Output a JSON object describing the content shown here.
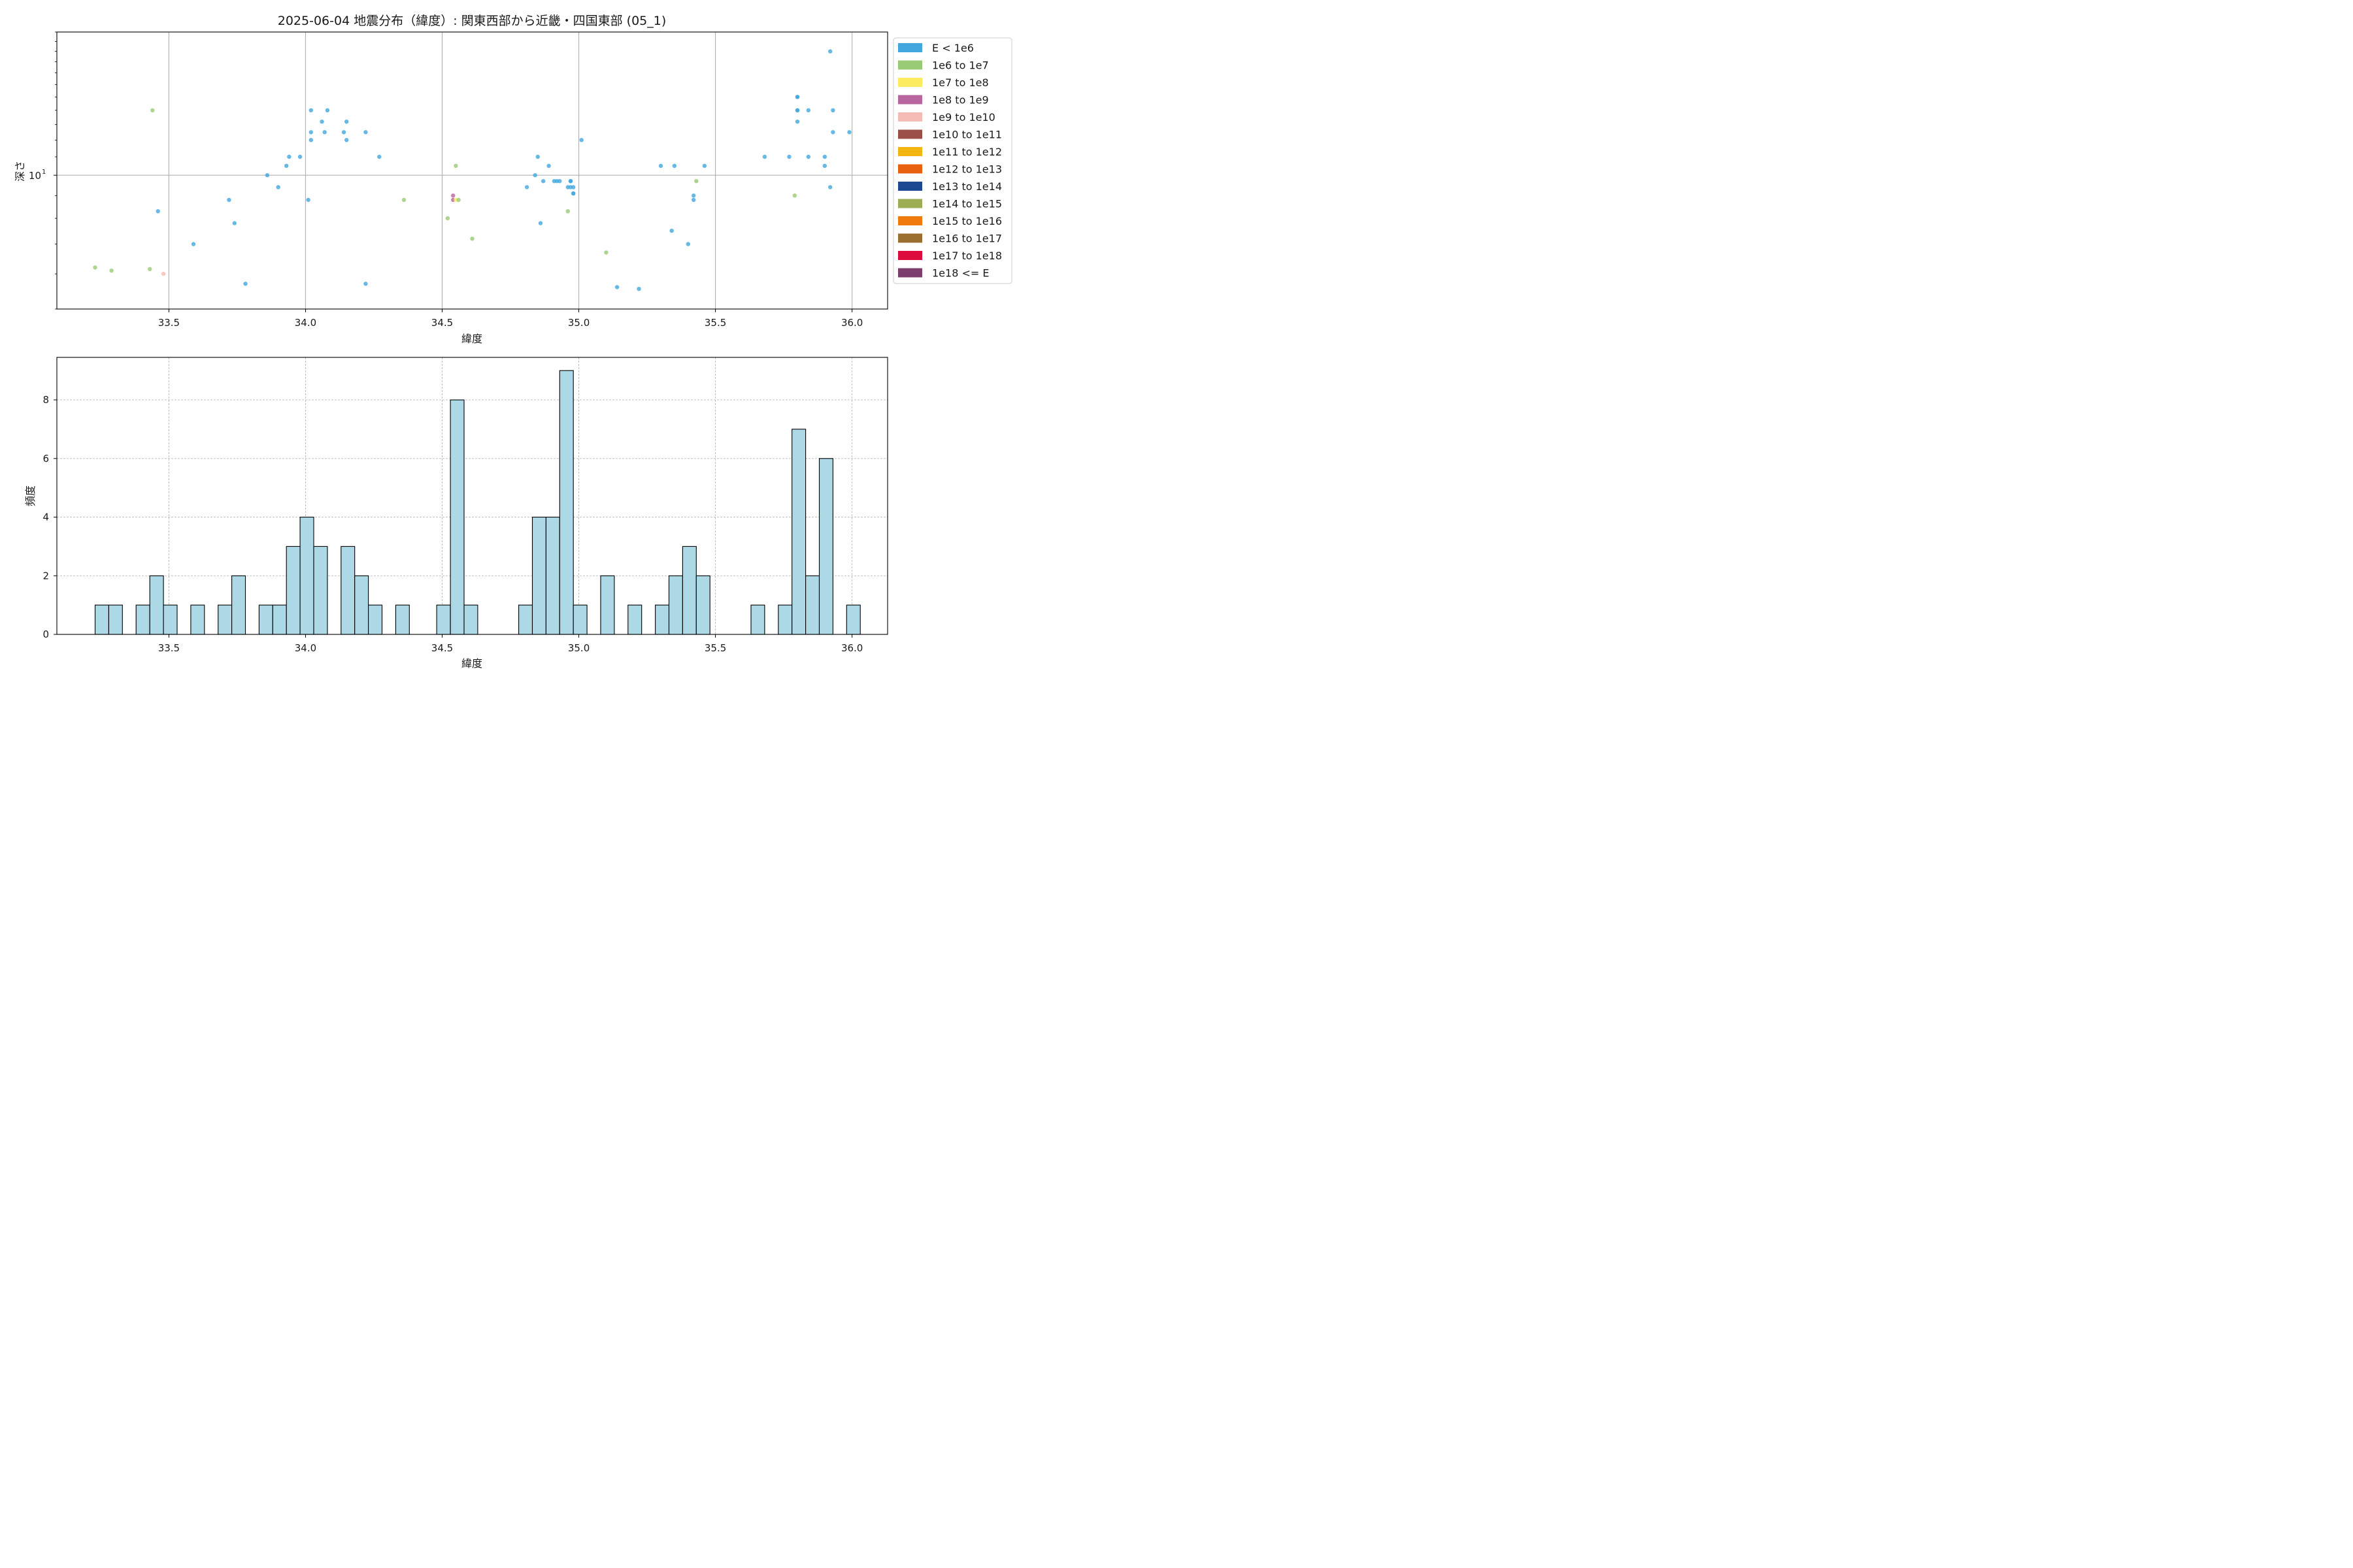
{
  "title": "2025-06-04 地震分布（緯度）: 関東西部から近畿・四国東部 (05_1)",
  "colors": {
    "E < 1e6": "#41a7de",
    "1e6 to 1e7": "#98cb74",
    "1e7 to 1e8": "#fdec60",
    "1e8 to 1e9": "#b9659f",
    "1e9 to 1e10": "#f4bbb5",
    "1e10 to 1e11": "#9b4e48",
    "1e11 to 1e12": "#f4b411",
    "1e12 to 1e13": "#e8620e",
    "1e13 to 1e14": "#1b4a93",
    "1e14 to 1e15": "#9cae53",
    "1e15 to 1e16": "#f07a0c",
    "1e16 to 1e17": "#9a6f2f",
    "1e17 to 1e18": "#dc0d3c",
    "1e18 <= E": "#7c3f6d",
    "hist_fill": "#add8e6"
  },
  "chart_data": [
    {
      "type": "scatter",
      "xlabel": "緯度",
      "ylabel": "深さ",
      "xlim": [
        33.09,
        36.13
      ],
      "ylim": [
        5.0,
        21.0
      ],
      "yscale": "log",
      "xticks": [
        "33.5",
        "34.0",
        "34.5",
        "35.0",
        "35.5",
        "36.0"
      ],
      "yticks": [
        {
          "value": 10,
          "base": "10",
          "exp": "1"
        }
      ],
      "grid": true,
      "legend_position": "outside-right",
      "legend": [
        "E < 1e6",
        "1e6 to 1e7",
        "1e7 to 1e8",
        "1e8 to 1e9",
        "1e9 to 1e10",
        "1e10 to 1e11",
        "1e11 to 1e12",
        "1e12 to 1e13",
        "1e13 to 1e14",
        "1e14 to 1e15",
        "1e15 to 1e16",
        "1e16 to 1e17",
        "1e17 to 1e18",
        "1e18 <= E"
      ],
      "points": [
        {
          "x": 33.23,
          "y": 6.2,
          "c": "1e6 to 1e7"
        },
        {
          "x": 33.29,
          "y": 6.1,
          "c": "1e6 to 1e7"
        },
        {
          "x": 33.43,
          "y": 6.15,
          "c": "1e6 to 1e7"
        },
        {
          "x": 33.44,
          "y": 14.0,
          "c": "1e6 to 1e7"
        },
        {
          "x": 33.46,
          "y": 8.3,
          "c": "E < 1e6"
        },
        {
          "x": 33.48,
          "y": 6.0,
          "c": "1e9 to 1e10"
        },
        {
          "x": 33.59,
          "y": 7.0,
          "c": "E < 1e6"
        },
        {
          "x": 33.72,
          "y": 8.8,
          "c": "E < 1e6"
        },
        {
          "x": 33.74,
          "y": 7.8,
          "c": "E < 1e6"
        },
        {
          "x": 33.78,
          "y": 5.7,
          "c": "E < 1e6"
        },
        {
          "x": 33.86,
          "y": 10.0,
          "c": "E < 1e6"
        },
        {
          "x": 33.9,
          "y": 9.4,
          "c": "E < 1e6"
        },
        {
          "x": 33.93,
          "y": 10.5,
          "c": "E < 1e6"
        },
        {
          "x": 33.94,
          "y": 11.0,
          "c": "E < 1e6"
        },
        {
          "x": 33.98,
          "y": 11.0,
          "c": "E < 1e6"
        },
        {
          "x": 34.01,
          "y": 8.8,
          "c": "E < 1e6"
        },
        {
          "x": 34.02,
          "y": 12.0,
          "c": "E < 1e6"
        },
        {
          "x": 34.02,
          "y": 12.5,
          "c": "E < 1e6"
        },
        {
          "x": 34.02,
          "y": 14.0,
          "c": "E < 1e6"
        },
        {
          "x": 34.06,
          "y": 13.2,
          "c": "E < 1e6"
        },
        {
          "x": 34.07,
          "y": 12.5,
          "c": "E < 1e6"
        },
        {
          "x": 34.08,
          "y": 14.0,
          "c": "E < 1e6"
        },
        {
          "x": 34.14,
          "y": 12.5,
          "c": "E < 1e6"
        },
        {
          "x": 34.15,
          "y": 12.0,
          "c": "E < 1e6"
        },
        {
          "x": 34.15,
          "y": 13.2,
          "c": "E < 1e6"
        },
        {
          "x": 34.22,
          "y": 12.5,
          "c": "E < 1e6"
        },
        {
          "x": 34.22,
          "y": 5.7,
          "c": "E < 1e6"
        },
        {
          "x": 34.27,
          "y": 11.0,
          "c": "E < 1e6"
        },
        {
          "x": 34.36,
          "y": 8.8,
          "c": "1e6 to 1e7"
        },
        {
          "x": 34.52,
          "y": 8.0,
          "c": "1e6 to 1e7"
        },
        {
          "x": 34.54,
          "y": 9.0,
          "c": "1e8 to 1e9"
        },
        {
          "x": 34.54,
          "y": 8.8,
          "c": "1e8 to 1e9"
        },
        {
          "x": 34.55,
          "y": 10.5,
          "c": "1e6 to 1e7"
        },
        {
          "x": 34.55,
          "y": 8.8,
          "c": "1e7 to 1e8"
        },
        {
          "x": 34.56,
          "y": 8.8,
          "c": "1e6 to 1e7"
        },
        {
          "x": 34.61,
          "y": 7.2,
          "c": "1e6 to 1e7"
        },
        {
          "x": 34.81,
          "y": 9.4,
          "c": "E < 1e6"
        },
        {
          "x": 34.84,
          "y": 10.0,
          "c": "E < 1e6"
        },
        {
          "x": 34.85,
          "y": 11.0,
          "c": "E < 1e6"
        },
        {
          "x": 34.86,
          "y": 7.8,
          "c": "E < 1e6"
        },
        {
          "x": 34.87,
          "y": 9.7,
          "c": "E < 1e6"
        },
        {
          "x": 34.89,
          "y": 10.5,
          "c": "E < 1e6"
        },
        {
          "x": 34.91,
          "y": 9.7,
          "c": "E < 1e6"
        },
        {
          "x": 34.92,
          "y": 9.7,
          "c": "E < 1e6"
        },
        {
          "x": 34.93,
          "y": 9.7,
          "c": "E < 1e6"
        },
        {
          "x": 34.96,
          "y": 8.3,
          "c": "1e6 to 1e7"
        },
        {
          "x": 34.96,
          "y": 9.4,
          "c": "E < 1e6"
        },
        {
          "x": 34.97,
          "y": 9.4,
          "c": "E < 1e6"
        },
        {
          "x": 34.97,
          "y": 9.7,
          "c": "E < 1e6"
        },
        {
          "x": 34.97,
          "y": 9.7,
          "c": "E < 1e6"
        },
        {
          "x": 34.98,
          "y": 9.4,
          "c": "E < 1e6"
        },
        {
          "x": 34.98,
          "y": 9.1,
          "c": "E < 1e6"
        },
        {
          "x": 34.98,
          "y": 9.1,
          "c": "E < 1e6"
        },
        {
          "x": 35.01,
          "y": 12.0,
          "c": "E < 1e6"
        },
        {
          "x": 35.1,
          "y": 6.7,
          "c": "1e6 to 1e7"
        },
        {
          "x": 35.14,
          "y": 5.6,
          "c": "E < 1e6"
        },
        {
          "x": 35.22,
          "y": 5.55,
          "c": "E < 1e6"
        },
        {
          "x": 35.3,
          "y": 10.5,
          "c": "E < 1e6"
        },
        {
          "x": 35.34,
          "y": 7.5,
          "c": "E < 1e6"
        },
        {
          "x": 35.35,
          "y": 10.5,
          "c": "E < 1e6"
        },
        {
          "x": 35.4,
          "y": 7.0,
          "c": "E < 1e6"
        },
        {
          "x": 35.42,
          "y": 9.0,
          "c": "E < 1e6"
        },
        {
          "x": 35.42,
          "y": 8.8,
          "c": "E < 1e6"
        },
        {
          "x": 35.43,
          "y": 9.7,
          "c": "1e6 to 1e7"
        },
        {
          "x": 35.46,
          "y": 10.5,
          "c": "E < 1e6"
        },
        {
          "x": 35.68,
          "y": 11.0,
          "c": "E < 1e6"
        },
        {
          "x": 35.77,
          "y": 11.0,
          "c": "E < 1e6"
        },
        {
          "x": 35.79,
          "y": 9.0,
          "c": "1e6 to 1e7"
        },
        {
          "x": 35.8,
          "y": 13.2,
          "c": "E < 1e6"
        },
        {
          "x": 35.8,
          "y": 14.0,
          "c": "E < 1e6"
        },
        {
          "x": 35.8,
          "y": 14.0,
          "c": "E < 1e6"
        },
        {
          "x": 35.8,
          "y": 15.0,
          "c": "E < 1e6"
        },
        {
          "x": 35.8,
          "y": 15.0,
          "c": "E < 1e6"
        },
        {
          "x": 35.84,
          "y": 11.0,
          "c": "E < 1e6"
        },
        {
          "x": 35.84,
          "y": 14.0,
          "c": "E < 1e6"
        },
        {
          "x": 35.9,
          "y": 11.0,
          "c": "E < 1e6"
        },
        {
          "x": 35.9,
          "y": 10.5,
          "c": "E < 1e6"
        },
        {
          "x": 35.92,
          "y": 19.0,
          "c": "E < 1e6"
        },
        {
          "x": 35.92,
          "y": 9.4,
          "c": "E < 1e6"
        },
        {
          "x": 35.93,
          "y": 12.5,
          "c": "E < 1e6"
        },
        {
          "x": 35.93,
          "y": 14.0,
          "c": "E < 1e6"
        },
        {
          "x": 35.99,
          "y": 12.5,
          "c": "E < 1e6"
        }
      ]
    },
    {
      "type": "bar",
      "subtype": "histogram",
      "xlabel": "緯度",
      "ylabel": "頻度",
      "xlim": [
        33.09,
        36.13
      ],
      "ylim": [
        0,
        9.45
      ],
      "xticks": [
        "33.5",
        "34.0",
        "34.5",
        "35.0",
        "35.5",
        "36.0"
      ],
      "yticks": [
        "0",
        "2",
        "4",
        "6",
        "8"
      ],
      "grid": true,
      "bin_start": 33.23,
      "bin_width": 0.05,
      "counts": [
        1,
        1,
        0,
        1,
        2,
        1,
        0,
        1,
        0,
        1,
        2,
        0,
        1,
        1,
        3,
        4,
        3,
        0,
        3,
        2,
        1,
        0,
        1,
        0,
        0,
        1,
        8,
        1,
        0,
        0,
        0,
        1,
        4,
        4,
        9,
        1,
        0,
        2,
        0,
        1,
        0,
        1,
        2,
        3,
        2,
        0,
        0,
        0,
        1,
        0,
        1,
        7,
        2,
        6,
        0,
        1
      ]
    }
  ]
}
